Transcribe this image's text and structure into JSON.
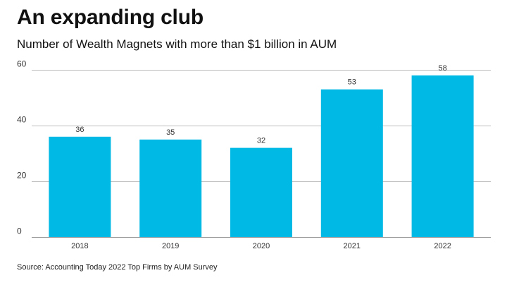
{
  "chart_data": {
    "type": "bar",
    "title": "An expanding club",
    "subtitle": "Number of Wealth Magnets with more than $1 billion in AUM",
    "source": "Source: Accounting Today 2022 Top Firms by AUM Survey",
    "categories": [
      "2018",
      "2019",
      "2020",
      "2021",
      "2022"
    ],
    "values": [
      36,
      35,
      32,
      53,
      58
    ],
    "data_labels": [
      "36",
      "35",
      "32",
      "53",
      "58"
    ],
    "yticks": [
      0,
      20,
      40,
      60
    ],
    "ytick_labels": [
      "0",
      "20",
      "40",
      "60"
    ],
    "ylim": [
      0,
      60
    ],
    "xlabel": "",
    "ylabel": "",
    "grid": true,
    "legend": "none",
    "bar_color": "#00b9e4",
    "grid_color": "#bdbdbd"
  }
}
